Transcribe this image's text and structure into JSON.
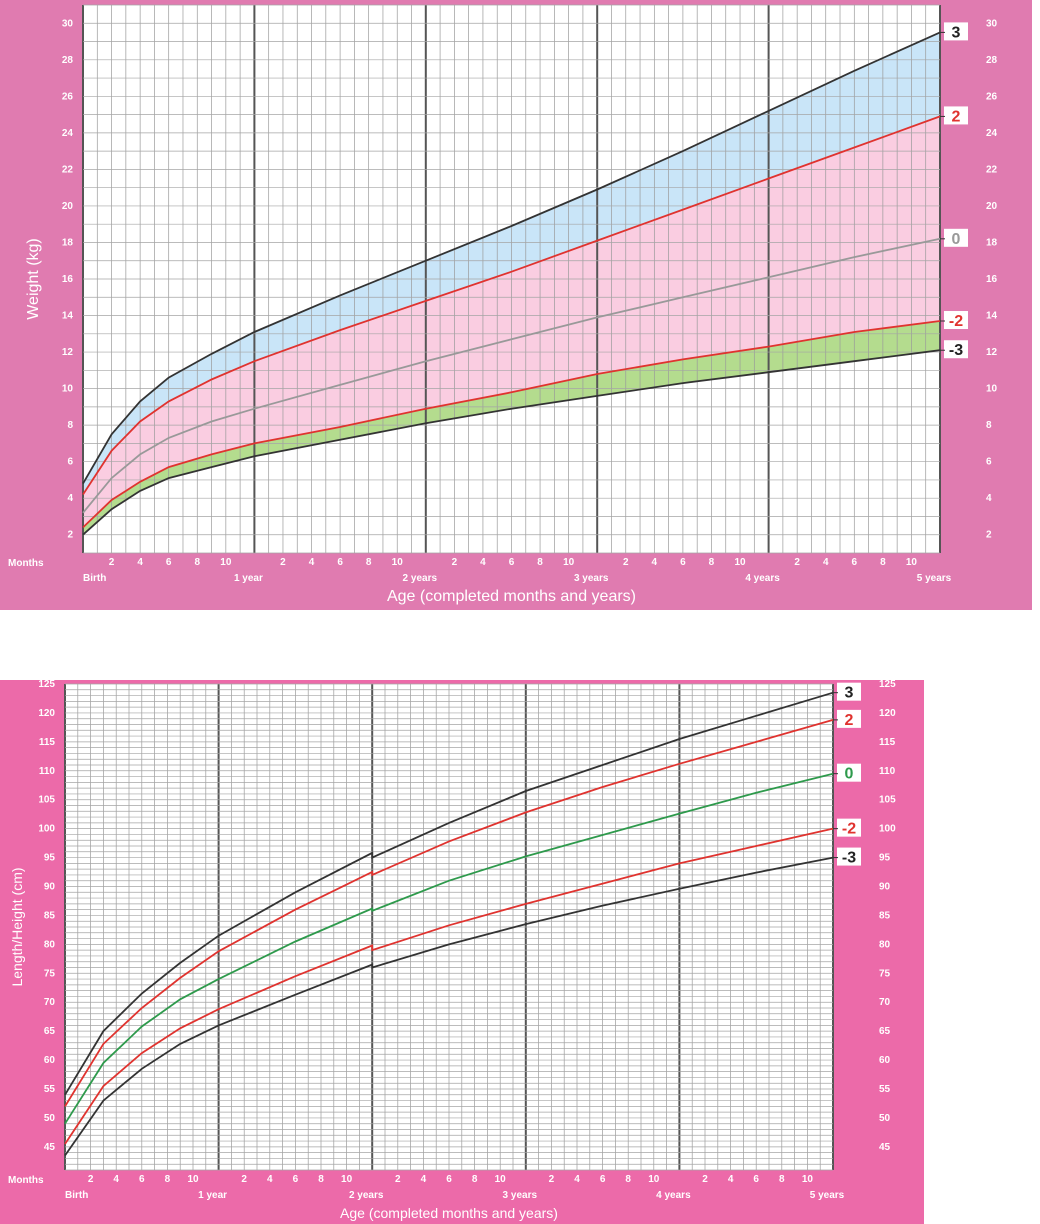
{
  "chart_data": [
    {
      "type": "line",
      "title": "",
      "xlabel": "Age (completed months and years)",
      "ylabel": "Weight (kg)",
      "x_unit_label": "Months",
      "x_major_labels": [
        "Birth",
        "1 year",
        "2 years",
        "3 years",
        "4 years",
        "5 years"
      ],
      "x_minor_labels": [
        "2",
        "4",
        "6",
        "8",
        "10"
      ],
      "xlim": [
        0,
        60
      ],
      "ylim": [
        1,
        31
      ],
      "y_ticks": [
        2,
        4,
        6,
        8,
        10,
        12,
        14,
        16,
        18,
        20,
        22,
        24,
        26,
        28,
        30
      ],
      "grid": true,
      "x": [
        0,
        2,
        4,
        6,
        9,
        12,
        18,
        24,
        30,
        36,
        42,
        48,
        54,
        60
      ],
      "series": [
        {
          "name": "3",
          "color": "#333333",
          "values": [
            4.8,
            7.5,
            9.3,
            10.6,
            11.9,
            13.1,
            15.1,
            17.0,
            18.9,
            20.9,
            23.0,
            25.2,
            27.4,
            29.5
          ]
        },
        {
          "name": "2",
          "color": "#e0332f",
          "values": [
            4.2,
            6.6,
            8.2,
            9.3,
            10.5,
            11.5,
            13.2,
            14.8,
            16.4,
            18.1,
            19.8,
            21.5,
            23.2,
            24.9
          ]
        },
        {
          "name": "0",
          "color": "#999999",
          "values": [
            3.2,
            5.1,
            6.4,
            7.3,
            8.2,
            8.9,
            10.2,
            11.5,
            12.7,
            13.9,
            15.0,
            16.1,
            17.2,
            18.2
          ]
        },
        {
          "name": "-2",
          "color": "#e0332f",
          "values": [
            2.4,
            3.9,
            4.9,
            5.7,
            6.4,
            7.0,
            7.9,
            8.9,
            9.8,
            10.8,
            11.6,
            12.3,
            13.1,
            13.7
          ]
        },
        {
          "name": "-3",
          "color": "#333333",
          "values": [
            2.0,
            3.4,
            4.4,
            5.1,
            5.7,
            6.3,
            7.2,
            8.1,
            8.9,
            9.6,
            10.3,
            10.9,
            11.5,
            12.1
          ]
        }
      ],
      "bands": [
        {
          "between": [
            "2",
            "3"
          ],
          "color": "#bfe0f7"
        },
        {
          "between": [
            "-2",
            "2"
          ],
          "color": "#f9c4dc"
        },
        {
          "between": [
            "-3",
            "-2"
          ],
          "color": "#a7d67a"
        }
      ]
    },
    {
      "type": "line",
      "title": "",
      "xlabel": "Age (completed months and years)",
      "ylabel": "Length/Height (cm)",
      "x_unit_label": "Months",
      "x_major_labels": [
        "Birth",
        "1 year",
        "2 years",
        "3 years",
        "4 years",
        "5 years"
      ],
      "x_minor_labels": [
        "2",
        "4",
        "6",
        "8",
        "10"
      ],
      "xlim": [
        0,
        60
      ],
      "ylim": [
        41,
        125
      ],
      "y_ticks": [
        45,
        50,
        55,
        60,
        65,
        70,
        75,
        80,
        85,
        90,
        95,
        100,
        105,
        110,
        115,
        120,
        125
      ],
      "grid": true,
      "x": [
        0,
        3,
        6,
        9,
        12,
        18,
        24,
        24,
        30,
        36,
        42,
        48,
        54,
        60
      ],
      "series": [
        {
          "name": "3",
          "color": "#333333",
          "values": [
            54.0,
            65.0,
            71.5,
            76.8,
            81.5,
            89.0,
            95.8,
            95.0,
            101.0,
            106.5,
            111.0,
            115.5,
            119.5,
            123.5
          ]
        },
        {
          "name": "2",
          "color": "#e0332f",
          "values": [
            52.0,
            62.8,
            69.0,
            74.2,
            78.8,
            86.0,
            92.5,
            92.0,
            97.8,
            102.8,
            107.2,
            111.2,
            115.0,
            118.8
          ]
        },
        {
          "name": "0",
          "color": "#2e9a4c",
          "values": [
            49.0,
            59.5,
            65.8,
            70.5,
            74.0,
            80.5,
            86.2,
            85.8,
            91.0,
            95.2,
            98.9,
            102.6,
            106.2,
            109.5
          ]
        },
        {
          "name": "-2",
          "color": "#e0332f",
          "values": [
            45.5,
            55.5,
            61.2,
            65.5,
            68.8,
            74.5,
            79.8,
            79.0,
            83.3,
            87.0,
            90.5,
            94.0,
            97.0,
            100.0
          ]
        },
        {
          "name": "-3",
          "color": "#333333",
          "values": [
            43.5,
            53.0,
            58.5,
            62.8,
            66.0,
            71.3,
            76.5,
            76.0,
            80.0,
            83.5,
            86.7,
            89.6,
            92.4,
            95.0
          ]
        }
      ]
    }
  ]
}
